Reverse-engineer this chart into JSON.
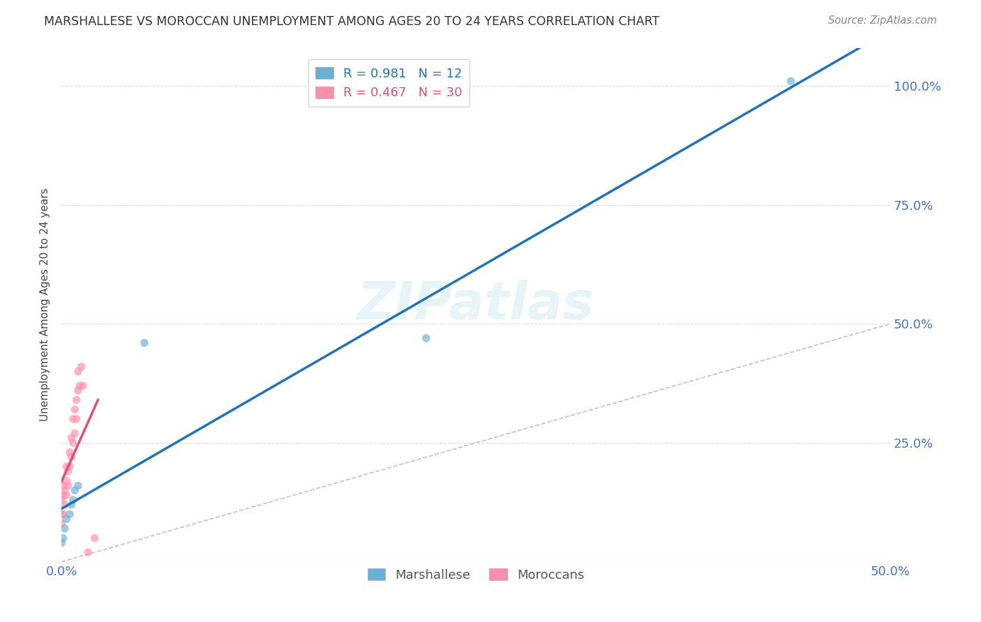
{
  "title": "MARSHALLESE VS MOROCCAN UNEMPLOYMENT AMONG AGES 20 TO 24 YEARS CORRELATION CHART",
  "source": "Source: ZipAtlas.com",
  "ylabel": "Unemployment Among Ages 20 to 24 years",
  "xlim": [
    0.0,
    0.5
  ],
  "ylim": [
    0.0,
    1.08
  ],
  "marshallese_color": "#6baed6",
  "moroccan_color": "#fc8fab",
  "marshallese_R": 0.981,
  "marshallese_N": 12,
  "moroccan_R": 0.467,
  "moroccan_N": 30,
  "watermark": "ZIPatlas",
  "marshallese_points_x": [
    0.0,
    0.001,
    0.002,
    0.003,
    0.005,
    0.006,
    0.007,
    0.008,
    0.01,
    0.05,
    0.22,
    0.44
  ],
  "marshallese_points_y": [
    0.04,
    0.05,
    0.07,
    0.09,
    0.1,
    0.12,
    0.13,
    0.15,
    0.16,
    0.46,
    0.47,
    1.01
  ],
  "moroccan_points_x": [
    0.0,
    0.0,
    0.0,
    0.001,
    0.001,
    0.001,
    0.002,
    0.002,
    0.003,
    0.003,
    0.003,
    0.004,
    0.004,
    0.005,
    0.005,
    0.006,
    0.006,
    0.007,
    0.007,
    0.008,
    0.008,
    0.009,
    0.009,
    0.01,
    0.01,
    0.011,
    0.012,
    0.013,
    0.016,
    0.02
  ],
  "moroccan_points_y": [
    0.08,
    0.1,
    0.13,
    0.1,
    0.14,
    0.16,
    0.12,
    0.15,
    0.14,
    0.17,
    0.2,
    0.16,
    0.19,
    0.2,
    0.23,
    0.22,
    0.26,
    0.25,
    0.3,
    0.27,
    0.32,
    0.3,
    0.34,
    0.36,
    0.4,
    0.37,
    0.41,
    0.37,
    0.02,
    0.05
  ],
  "blue_line_color": "#2171b5",
  "pink_line_color": "#e05070",
  "diag_line_color": "#bbbbbb",
  "background_color": "#ffffff",
  "grid_color": "#cccccc",
  "title_color": "#333333",
  "axis_tick_color": "#4472c4",
  "marker_size": 70,
  "marker_alpha": 0.65
}
